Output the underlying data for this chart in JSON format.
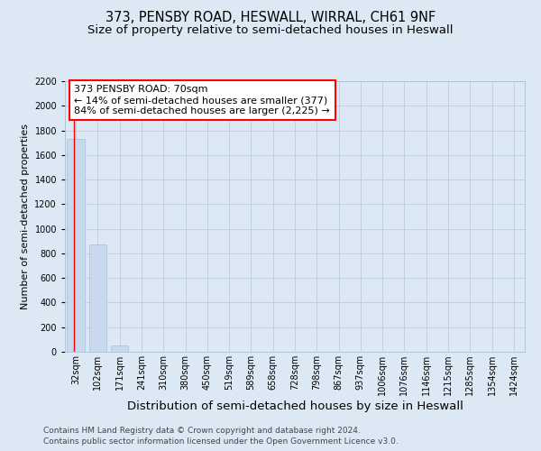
{
  "title": "373, PENSBY ROAD, HESWALL, WIRRAL, CH61 9NF",
  "subtitle": "Size of property relative to semi-detached houses in Heswall",
  "xlabel": "Distribution of semi-detached houses by size in Heswall",
  "ylabel": "Number of semi-detached properties",
  "footnote1": "Contains HM Land Registry data © Crown copyright and database right 2024.",
  "footnote2": "Contains public sector information licensed under the Open Government Licence v3.0.",
  "bar_labels": [
    "32sqm",
    "102sqm",
    "171sqm",
    "241sqm",
    "310sqm",
    "380sqm",
    "450sqm",
    "519sqm",
    "589sqm",
    "658sqm",
    "728sqm",
    "798sqm",
    "867sqm",
    "937sqm",
    "1006sqm",
    "1076sqm",
    "1146sqm",
    "1215sqm",
    "1285sqm",
    "1354sqm",
    "1424sqm"
  ],
  "bar_values": [
    1730,
    870,
    50,
    0,
    0,
    0,
    0,
    0,
    0,
    0,
    0,
    0,
    0,
    0,
    0,
    0,
    0,
    0,
    0,
    0,
    0
  ],
  "bar_color": "#c9d9ed",
  "bar_edge_color": "#a8c0d6",
  "ylim": [
    0,
    2200
  ],
  "yticks": [
    0,
    200,
    400,
    600,
    800,
    1000,
    1200,
    1400,
    1600,
    1800,
    2000,
    2200
  ],
  "grid_color": "#c0d0e0",
  "bg_color": "#dce9f5",
  "red_line_x": -0.5,
  "annotation_line1": "373 PENSBY ROAD: 70sqm",
  "annotation_line2": "← 14% of semi-detached houses are smaller (377)",
  "annotation_line3": "84% of semi-detached houses are larger (2,225) →",
  "title_fontsize": 10.5,
  "subtitle_fontsize": 9.5,
  "tick_fontsize": 7,
  "ylabel_fontsize": 8,
  "xlabel_fontsize": 9.5,
  "annotation_fontsize": 8,
  "footnote_fontsize": 6.5
}
